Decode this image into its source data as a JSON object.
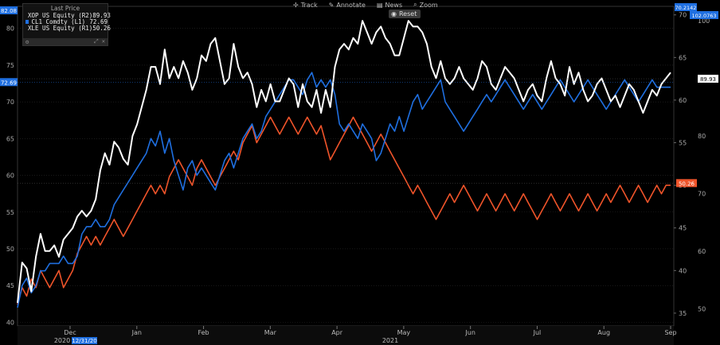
{
  "toolbar": {
    "track": "Track",
    "annotate": "Annotate",
    "news": "News",
    "zoom": "Zoom",
    "reset": "Reset"
  },
  "legend": {
    "title": "Last Price",
    "items": [
      {
        "name": "XOP US Equity  (R2)",
        "value": "89.93",
        "color": "#ffffff"
      },
      {
        "name": "CL1 Comdty  (L1)",
        "value": "72.69",
        "color": "#1f6fe0"
      },
      {
        "name": "XLE US Equity  (R1)",
        "value": "50.26",
        "color": "#f0542a"
      }
    ]
  },
  "top_labels": {
    "left": "82.08",
    "right1": "70.2142",
    "right2": "102.0763"
  },
  "chart_data": {
    "type": "line",
    "x_labels": [
      "Dec",
      "Jan",
      "Feb",
      "Mar",
      "Apr",
      "May",
      "Jun",
      "Jul",
      "Aug",
      "Sep"
    ],
    "year_labels": [
      "2020",
      "2021"
    ],
    "x_marker": "12/31/20",
    "axes": {
      "left": {
        "ticks": [
          40,
          45,
          50,
          55,
          60,
          65,
          70,
          75,
          80
        ],
        "range": [
          39.5,
          83
        ]
      },
      "right1": {
        "ticks": [
          35,
          40,
          45,
          50,
          55,
          60,
          65,
          70
        ],
        "range": [
          33.5,
          71
        ]
      },
      "right2": {
        "ticks": [
          50,
          60,
          70,
          80,
          90,
          100
        ],
        "range": [
          47,
          102.5
        ]
      }
    },
    "series": [
      {
        "name": "XOP US Equity (R2)",
        "axis": "right2",
        "color": "#ffffff",
        "last": "89.93",
        "values": [
          51,
          58,
          57,
          53,
          59,
          63,
          60,
          60,
          61,
          59,
          62,
          63,
          64,
          66,
          67,
          66,
          67,
          69,
          74,
          77,
          75,
          79,
          78,
          76,
          75,
          80,
          82,
          85,
          88,
          92,
          92,
          89,
          95,
          90,
          92,
          90,
          93,
          91,
          88,
          90,
          94,
          93,
          96,
          97,
          93,
          89,
          90,
          96,
          92,
          90,
          91,
          89,
          85,
          88,
          86,
          89,
          86,
          86,
          88,
          90,
          89,
          85,
          89,
          86,
          85,
          88,
          84,
          88,
          85,
          92,
          95,
          96,
          95,
          97,
          96,
          100,
          98,
          96,
          98,
          99,
          97,
          96,
          94,
          94,
          97,
          100,
          99,
          99,
          98,
          96,
          92,
          90,
          93,
          90,
          89,
          90,
          92,
          90,
          89,
          88,
          90,
          93,
          92,
          89,
          88,
          90,
          92,
          91,
          90,
          88,
          86,
          88,
          89,
          87,
          86,
          90,
          93,
          90,
          89,
          87,
          92,
          89,
          91,
          88,
          86,
          87,
          89,
          90,
          88,
          86,
          87,
          85,
          87,
          89,
          88,
          86,
          84,
          86,
          88,
          87,
          89,
          90,
          91
        ]
      },
      {
        "name": "CL1 Comdty (L1)",
        "axis": "left",
        "color": "#1f6fe0",
        "last": "72.69",
        "values": [
          42,
          45,
          46,
          44,
          45,
          47,
          47,
          48,
          48,
          48,
          49,
          48,
          48,
          49,
          52,
          53,
          53,
          54,
          53,
          53,
          54,
          56,
          57,
          58,
          59,
          60,
          61,
          62,
          63,
          65,
          64,
          66,
          63,
          65,
          62,
          60,
          58,
          61,
          62,
          60,
          61,
          60,
          59,
          58,
          60,
          62,
          63,
          61,
          63,
          65,
          66,
          67,
          65,
          66,
          68,
          69,
          70,
          71,
          72,
          73,
          73,
          72,
          71,
          73,
          74,
          72,
          73,
          72,
          73,
          71,
          67,
          66,
          67,
          66,
          65,
          67,
          66,
          65,
          62,
          63,
          65,
          67,
          66,
          68,
          66,
          68,
          70,
          71,
          69,
          70,
          71,
          72,
          73,
          70,
          69,
          68,
          67,
          66,
          67,
          68,
          69,
          70,
          71,
          70,
          71,
          72,
          73,
          72,
          71,
          70,
          69,
          70,
          71,
          70,
          69,
          70,
          71,
          72,
          73,
          72,
          71,
          70,
          71,
          72,
          73,
          72,
          71,
          70,
          69,
          70,
          71,
          72,
          73,
          72,
          71,
          70,
          71,
          72,
          73,
          72,
          72,
          72,
          72
        ]
      },
      {
        "name": "XLE US Equity (R1)",
        "axis": "right1",
        "color": "#f0542a",
        "last": "50.26",
        "values": [
          36,
          38,
          37,
          39,
          38,
          40,
          39,
          38,
          39,
          40,
          38,
          39,
          40,
          42,
          43,
          44,
          43,
          44,
          43,
          44,
          45,
          46,
          45,
          44,
          45,
          46,
          47,
          48,
          49,
          50,
          49,
          50,
          49,
          51,
          52,
          53,
          52,
          51,
          50,
          52,
          53,
          52,
          51,
          50,
          51,
          52,
          53,
          54,
          53,
          55,
          56,
          57,
          55,
          56,
          57,
          58,
          57,
          56,
          57,
          58,
          57,
          56,
          57,
          58,
          57,
          56,
          57,
          55,
          53,
          54,
          55,
          56,
          57,
          58,
          57,
          56,
          55,
          54,
          55,
          56,
          55,
          54,
          53,
          52,
          51,
          50,
          49,
          50,
          49,
          48,
          47,
          46,
          47,
          48,
          49,
          48,
          49,
          50,
          49,
          48,
          47,
          48,
          49,
          48,
          47,
          48,
          49,
          48,
          47,
          48,
          49,
          48,
          47,
          46,
          47,
          48,
          49,
          48,
          47,
          48,
          49,
          48,
          47,
          48,
          49,
          48,
          47,
          48,
          49,
          48,
          49,
          50,
          49,
          48,
          49,
          50,
          49,
          48,
          49,
          50,
          49,
          50,
          50
        ]
      }
    ]
  }
}
